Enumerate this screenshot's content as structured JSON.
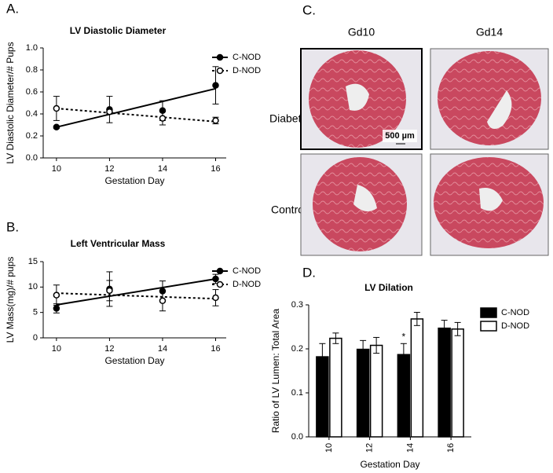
{
  "chart_data": [
    {
      "type": "line",
      "panel_label": "A.",
      "title": "LV Diastolic Diameter",
      "x_label": "Gestation Day",
      "y_label": "LV Diastolic Diameter/# Pups",
      "x": [
        10,
        12,
        14,
        16
      ],
      "xlim": [
        9.5,
        16.4
      ],
      "xticks": [
        10,
        12,
        14,
        16
      ],
      "ylim": [
        0,
        1.0
      ],
      "yticks": [
        {
          "value": 0,
          "label": "0.0"
        },
        {
          "value": 0.2,
          "label": "0.2"
        },
        {
          "value": 0.4,
          "label": "0.4"
        },
        {
          "value": 0.6,
          "label": "0.6"
        },
        {
          "value": 0.8,
          "label": "0.8"
        },
        {
          "value": 1.0,
          "label": "1.0"
        }
      ],
      "series": [
        {
          "name": "C-NOD",
          "color": "#000000",
          "marker": "filled",
          "line": "solid",
          "values": [
            0.28,
            0.44,
            0.43,
            0.66
          ],
          "errors": [
            0.01,
            0.12,
            0.09,
            0.17
          ],
          "fit": {
            "x": [
              10,
              16
            ],
            "values": [
              0.28,
              0.63
            ]
          }
        },
        {
          "name": "D-NOD",
          "color": "#000000",
          "marker": "open",
          "line": "dotted",
          "values": [
            0.45,
            0.42,
            0.36,
            0.34
          ],
          "errors": [
            0.11,
            0.02,
            0.06,
            0.03
          ],
          "fit": {
            "x": [
              10,
              16
            ],
            "values": [
              0.45,
              0.33
            ]
          }
        }
      ]
    },
    {
      "type": "line",
      "panel_label": "B.",
      "title": "Left Ventricular Mass",
      "x_label": "Gestation Day",
      "y_label": "LV Mass(mg)/# pups",
      "x": [
        10,
        12,
        14,
        16
      ],
      "xlim": [
        9.5,
        16.4
      ],
      "xticks": [
        10,
        12,
        14,
        16
      ],
      "ylim": [
        0,
        15
      ],
      "yticks": [
        0,
        5,
        10,
        15
      ],
      "series": [
        {
          "name": "C-NOD",
          "color": "#000000",
          "marker": "filled",
          "line": "solid",
          "values": [
            5.8,
            9.6,
            9.2,
            11.6
          ],
          "errors": [
            0.9,
            3.4,
            2.0,
            0.9
          ],
          "fit": {
            "x": [
              10,
              16
            ],
            "values": [
              6.5,
              11.6
            ]
          }
        },
        {
          "name": "D-NOD",
          "color": "#000000",
          "marker": "open",
          "line": "dotted",
          "values": [
            8.4,
            9.3,
            7.3,
            7.9
          ],
          "errors": [
            2.0,
            2.0,
            2.0,
            1.6
          ],
          "fit": {
            "x": [
              10,
              16
            ],
            "values": [
              8.8,
              7.7
            ]
          }
        }
      ]
    },
    {
      "type": "bar",
      "panel_label": "D.",
      "title": "LV Dilation",
      "x_label": "Gestation Day",
      "y_label": "Ratio of LV Lumen: Total Area",
      "categories": [
        "10",
        "12",
        "14",
        "16"
      ],
      "ylim": [
        0,
        0.3
      ],
      "yticks": [
        {
          "value": 0,
          "label": "0.0"
        },
        0.1,
        0.2,
        0.3
      ],
      "annotations": [
        {
          "text": "*",
          "category": 2,
          "series": 0
        }
      ],
      "series": [
        {
          "name": "C-NOD",
          "color": "#000000",
          "values": [
            0.182,
            0.199,
            0.187,
            0.247
          ],
          "errors": [
            0.03,
            0.02,
            0.025,
            0.018
          ]
        },
        {
          "name": "D-NOD",
          "color": "#ffffff",
          "values": [
            0.224,
            0.208,
            0.268,
            0.245
          ],
          "errors": [
            0.012,
            0.018,
            0.015,
            0.015
          ]
        }
      ]
    }
  ],
  "micrographs": {
    "panel_label": "C.",
    "columns": [
      "Gd10",
      "Gd14"
    ],
    "rows": [
      "Diabetic",
      "Control"
    ],
    "scale_bar": "500 µm"
  }
}
